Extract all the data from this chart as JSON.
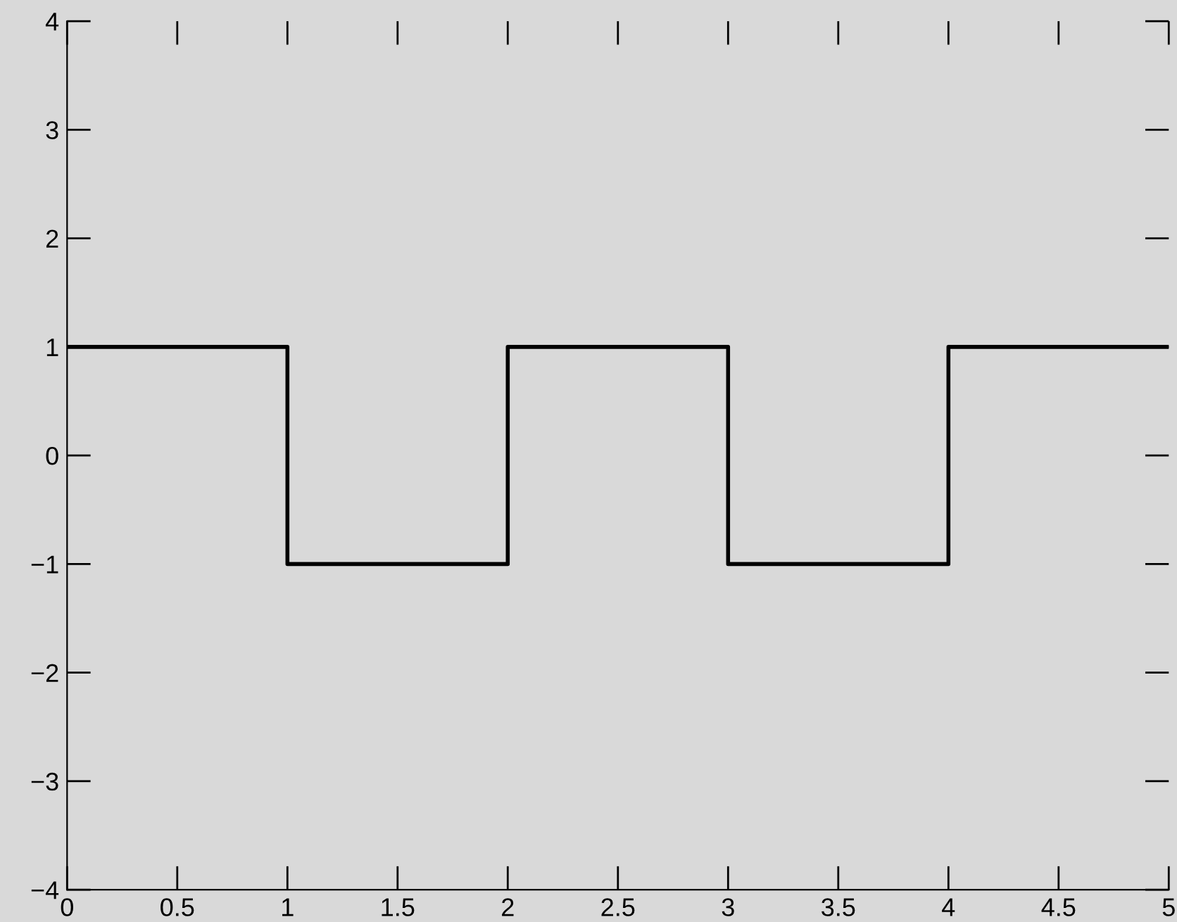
{
  "chart_data": {
    "type": "step",
    "x": [
      0,
      1,
      2,
      3,
      4,
      5
    ],
    "values": [
      1,
      -1,
      1,
      -1,
      1,
      1
    ],
    "color": "#000000",
    "xlim": [
      0,
      5
    ],
    "ylim": [
      -4,
      4
    ],
    "xticks": [
      0,
      0.5,
      1,
      1.5,
      2,
      2.5,
      3,
      3.5,
      4,
      4.5,
      5
    ],
    "yticks": [
      {
        "value": -4,
        "label": "−4"
      },
      {
        "value": -3,
        "label": "−3"
      },
      {
        "value": -2,
        "label": "−2"
      },
      {
        "value": -1,
        "label": "−1"
      },
      0,
      1,
      2,
      3,
      4
    ],
    "grid": false,
    "legend": false
  }
}
